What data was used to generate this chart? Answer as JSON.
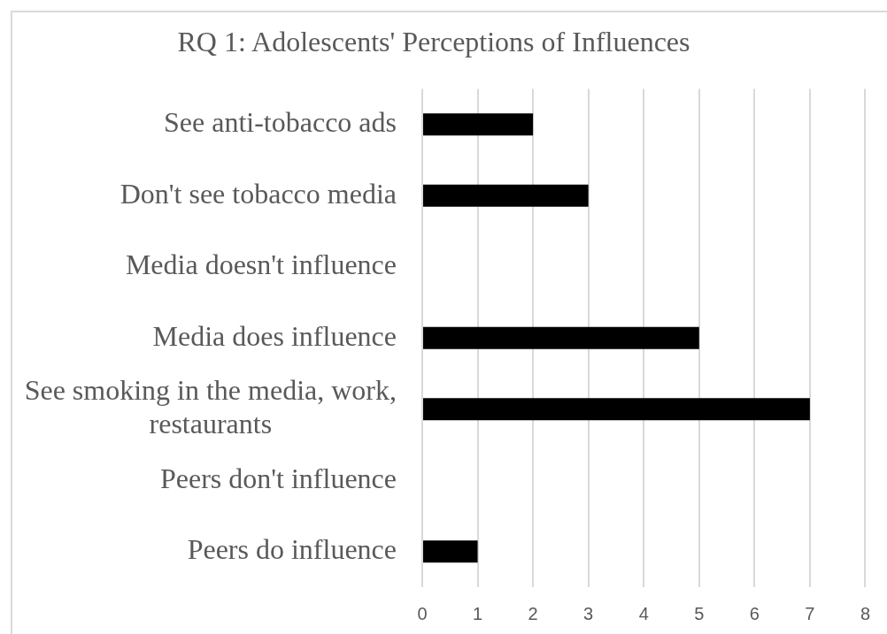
{
  "chart_data": {
    "type": "bar",
    "orientation": "horizontal",
    "title": "RQ 1: Adolescents' Perceptions of Influences",
    "categories": [
      "See anti-tobacco ads",
      "Don't see tobacco media",
      "Media doesn't influence",
      "Media does influence",
      "See smoking in the media, work, restaurants",
      "Peers don't influence",
      "Peers do influence"
    ],
    "values": [
      2,
      3,
      0,
      5,
      7,
      0,
      1
    ],
    "color": "#000000",
    "xlim": [
      0,
      8
    ],
    "xticks": [
      0,
      1,
      2,
      3,
      4,
      5,
      6,
      7,
      8
    ],
    "grid": "x"
  }
}
